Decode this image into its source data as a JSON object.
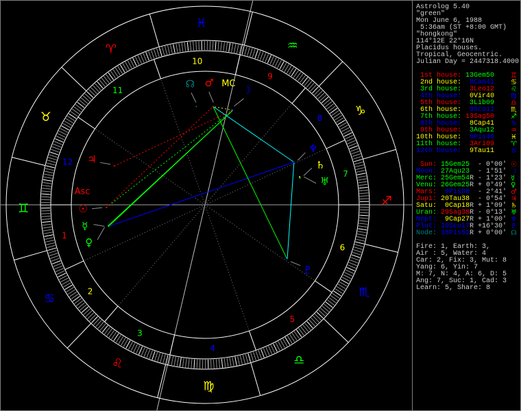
{
  "header": {
    "title": "Astrolog 5.40",
    "name": "\"green\"",
    "date": "Mon June 6, 1988",
    "time": " 5:36am (ST +8:00 GMT)",
    "place": "\"hongkong\"",
    "coords": "114°12E 22°16N",
    "house_system": "Placidus houses.",
    "zodiac": "Tropical, Geocentric.",
    "julian_day": "Julian Day = 2447318.4000"
  },
  "houses": [
    {
      "label": "1st house:",
      "value": "13Gem50",
      "color": "#ff0000",
      "value_color": "#00ff00",
      "glyph": "♊"
    },
    {
      "label": "2nd house:",
      "value": "8Can41",
      "color": "#ffff00",
      "value_color": "#0000ff",
      "glyph": "♋"
    },
    {
      "label": "3rd house:",
      "value": "3Leo12",
      "color": "#00ff00",
      "value_color": "#ff0000",
      "glyph": "♌"
    },
    {
      "label": "4th house:",
      "value": "0Vir40",
      "color": "#0000ff",
      "value_color": "#ffff00",
      "glyph": "♍"
    },
    {
      "label": "5th house:",
      "value": "3Lib09",
      "color": "#ff0000",
      "value_color": "#00ff00",
      "glyph": "♎"
    },
    {
      "label": "6th house:",
      "value": "9Sco11",
      "color": "#ffff00",
      "value_color": "#0000ff",
      "glyph": "♏"
    },
    {
      "label": "7th house:",
      "value": "13Sag50",
      "color": "#00ff00",
      "value_color": "#ff0000",
      "glyph": "♐"
    },
    {
      "label": "8th house:",
      "value": "8Cap41",
      "color": "#0000ff",
      "value_color": "#ffff00",
      "glyph": "♑"
    },
    {
      "label": "9th house:",
      "value": "3Aqu12",
      "color": "#ff0000",
      "value_color": "#00ff00",
      "glyph": "♒"
    },
    {
      "label": "10th house:",
      "value": "0Pis40",
      "color": "#ffff00",
      "value_color": "#0000ff",
      "glyph": "♓"
    },
    {
      "label": "11th house:",
      "value": "3Ari09",
      "color": "#00ff00",
      "value_color": "#ff0000",
      "glyph": "♈"
    },
    {
      "label": "12th house:",
      "value": "9Tau11",
      "color": "#0000ff",
      "value_color": "#ffff00",
      "glyph": "♉"
    }
  ],
  "planets": [
    {
      "name": "Sun:",
      "value": "15Gem25",
      "retro": "",
      "lat": "- 0°00'",
      "color": "#ff0000",
      "value_color": "#00ff00",
      "glyph": "☉"
    },
    {
      "name": "Moon:",
      "value": "27Aqu23",
      "retro": "",
      "lat": "- 1°51'",
      "color": "#0000ff",
      "value_color": "#00ff00",
      "glyph": "☽"
    },
    {
      "name": "Merc:",
      "value": "25Gem54",
      "retro": "R",
      "lat": "- 1°23'",
      "color": "#00ff00",
      "value_color": "#00ff00",
      "glyph": "☿"
    },
    {
      "name": "Venu:",
      "value": "26Gem25",
      "retro": "R",
      "lat": "+ 0°49'",
      "color": "#00ff00",
      "value_color": "#00ff00",
      "glyph": "♀"
    },
    {
      "name": "Mars:",
      "value": "9Pis08",
      "retro": "",
      "lat": "- 2°41'",
      "color": "#ff0000",
      "value_color": "#0000ff",
      "glyph": "♂"
    },
    {
      "name": "Jupi:",
      "value": "20Tau38",
      "retro": "",
      "lat": "- 0°54'",
      "color": "#ff0000",
      "value_color": "#ffff00",
      "glyph": "♃"
    },
    {
      "name": "Satu:",
      "value": "0Cap18",
      "retro": "R",
      "lat": "+ 1°09'",
      "color": "#ffff00",
      "value_color": "#ffff00",
      "glyph": "♄"
    },
    {
      "name": "Uran:",
      "value": "29Sag38",
      "retro": "R",
      "lat": "- 0°13'",
      "color": "#00ff00",
      "value_color": "#ff0000",
      "glyph": "♅"
    },
    {
      "name": "Nept:",
      "value": "9Cap27",
      "retro": "R",
      "lat": "+ 1°00'",
      "color": "#0000ff",
      "value_color": "#ffff00",
      "glyph": "♆"
    },
    {
      "name": "Plut:",
      "value": "10Sco17",
      "retro": "R",
      "lat": "+16°30'",
      "color": "#0000ff",
      "value_color": "#0000ff",
      "glyph": "♇"
    },
    {
      "name": "Node:",
      "value": "18Pis51",
      "retro": "R",
      "lat": "+ 0°00'",
      "color": "#008080",
      "value_color": "#0000ff",
      "glyph": "☊"
    }
  ],
  "summary": [
    "Fire: 1, Earth: 3,",
    "Air : 5, Water: 4",
    "Car: 2, Fix: 3, Mut: 8",
    "Yang: 6, Yin: 7",
    "M: 7, N: 4, A: 6, D: 5",
    "Ang: 7, Suc: 1, Cad: 3",
    "Learn: 5, Share: 8"
  ],
  "wheel": {
    "signs": [
      {
        "glyph": "♈",
        "color": "#ff0000"
      },
      {
        "glyph": "♉",
        "color": "#ffff00"
      },
      {
        "glyph": "♊",
        "color": "#00ff00"
      },
      {
        "glyph": "♋",
        "color": "#0000ff"
      },
      {
        "glyph": "♌",
        "color": "#ff0000"
      },
      {
        "glyph": "♍",
        "color": "#ffff00"
      },
      {
        "glyph": "♎",
        "color": "#00ff00"
      },
      {
        "glyph": "♏",
        "color": "#0000ff"
      },
      {
        "glyph": "♐",
        "color": "#ff0000"
      },
      {
        "glyph": "♑",
        "color": "#ffff00"
      },
      {
        "glyph": "♒",
        "color": "#00ff00"
      },
      {
        "glyph": "♓",
        "color": "#0000ff"
      }
    ],
    "house_numbers": [
      "1",
      "2",
      "3",
      "4",
      "5",
      "6",
      "7",
      "8",
      "9",
      "10",
      "11",
      "12"
    ],
    "asc_label": "Asc",
    "mc_label": "MC",
    "asc_color": "#ff0000",
    "mc_color": "#ffff00",
    "aspects": [
      {
        "from": 2,
        "to": 1,
        "type": "trine",
        "color": "#00ff00",
        "style": "solid"
      },
      {
        "from": 3,
        "to": 1,
        "type": "trine",
        "color": "#00ff00",
        "style": "solid"
      },
      {
        "from": 3,
        "to": 8,
        "type": "opposition",
        "color": "#0000ff",
        "style": "solid"
      },
      {
        "from": 4,
        "to": 8,
        "type": "sextile",
        "color": "#00ffff",
        "style": "solid"
      },
      {
        "from": 8,
        "to": 9,
        "type": "sextile",
        "color": "#00ffff",
        "style": "solid"
      },
      {
        "from": 9,
        "to": 4,
        "type": "trine",
        "color": "#00ff00",
        "style": "solid"
      },
      {
        "from": 0,
        "to": 1,
        "type": "trine",
        "color": "#00ff00",
        "style": "dotted"
      },
      {
        "from": 0,
        "to": 4,
        "type": "square",
        "color": "#ff0000",
        "style": "dotted"
      },
      {
        "from": 5,
        "to": 1,
        "type": "square",
        "color": "#ff0000",
        "style": "dotted"
      },
      {
        "from": 1,
        "to": 4,
        "type": "conjunction",
        "color": "#ffff00",
        "style": "dotted"
      }
    ]
  }
}
